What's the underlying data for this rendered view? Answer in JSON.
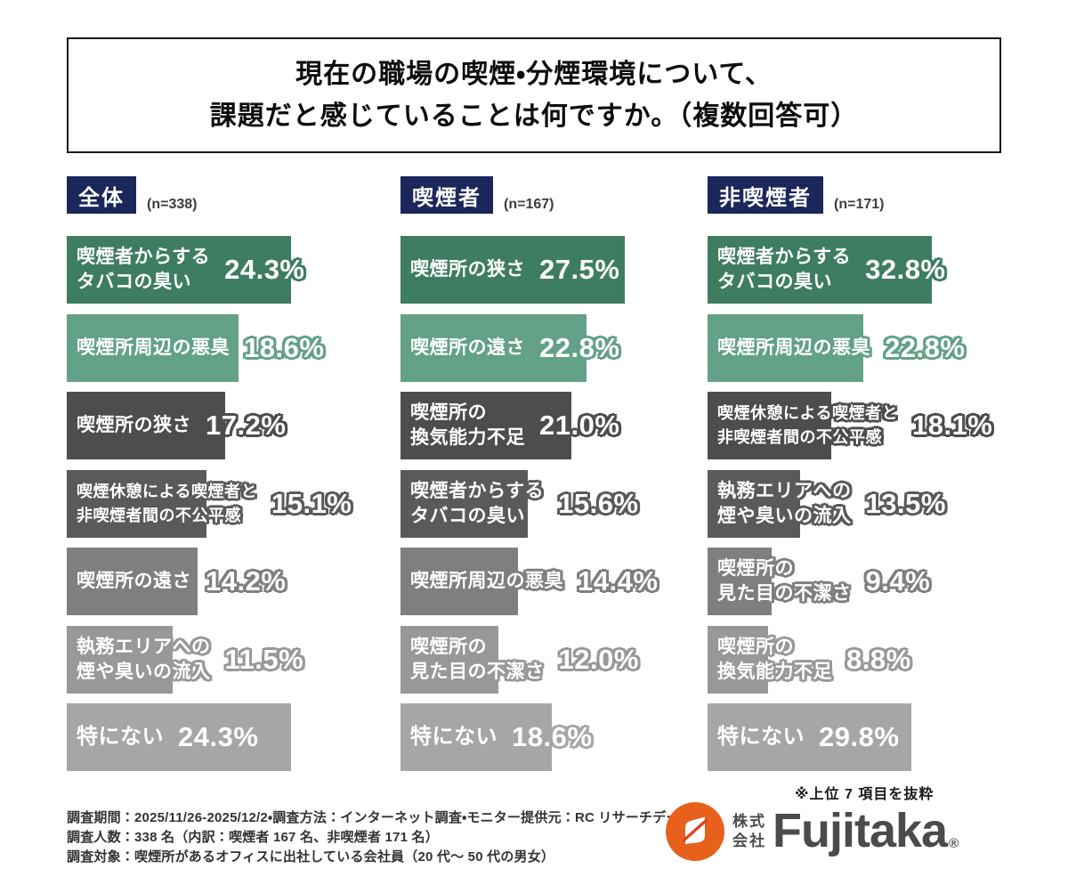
{
  "title": {
    "line1": "現在の職場の喫煙・分煙環境について、",
    "line2": "課題だと感じていることは何ですか。（複数回答可）"
  },
  "palette": {
    "rank_colors": [
      "#3E7D62",
      "#63A188",
      "#4D4D4D",
      "#5A5A5A",
      "#7F7F7F",
      "#989898",
      "#A6A6A6"
    ],
    "header_navy": "#1B265A",
    "logo_orange": "#E8611C",
    "logo_stripe": "#E0401A",
    "brand_gray": "#4B4B4B"
  },
  "columns": [
    {
      "header": "全体",
      "n_label": "(n=338)",
      "bars": [
        {
          "label": "喫煙者からする\nタバコの臭い",
          "display": "24.3%",
          "value": 24.3
        },
        {
          "label": "喫煙所周辺の悪臭",
          "display": "18.6%",
          "value": 18.6
        },
        {
          "label": "喫煙所の狭さ",
          "display": "17.2%",
          "value": 17.2
        },
        {
          "label": "喫煙休憩による喫煙者と\n非喫煙者間の不公平感",
          "display": "15.1%",
          "value": 15.1
        },
        {
          "label": "喫煙所の遠さ",
          "display": "14.2%",
          "value": 14.2
        },
        {
          "label": "執務エリアへの\n煙や臭いの流入",
          "display": "11.5%",
          "value": 11.5
        },
        {
          "label": "特にない",
          "display": "24.3%",
          "value": 24.3
        }
      ]
    },
    {
      "header": "喫煙者",
      "n_label": "(n=167)",
      "bars": [
        {
          "label": "喫煙所の狭さ",
          "display": "27.5%",
          "value": 27.5
        },
        {
          "label": "喫煙所の遠さ",
          "display": "22.8%",
          "value": 22.8
        },
        {
          "label": "喫煙所の\n換気能力不足",
          "display": "21.0%",
          "value": 21.0
        },
        {
          "label": "喫煙者からする\nタバコの臭い",
          "display": "15.6%",
          "value": 15.6
        },
        {
          "label": "喫煙所周辺の悪臭",
          "display": "14.4%",
          "value": 14.4
        },
        {
          "label": "喫煙所の\n見た目の不潔さ",
          "display": "12.0%",
          "value": 12.0
        },
        {
          "label": "特にない",
          "display": "18.6%",
          "value": 18.6
        }
      ]
    },
    {
      "header": "非喫煙者",
      "n_label": "(n=171)",
      "bars": [
        {
          "label": "喫煙者からする\nタバコの臭い",
          "display": "32.8%",
          "value": 32.8
        },
        {
          "label": "喫煙所周辺の悪臭",
          "display": "22.8%",
          "value": 22.8
        },
        {
          "label": "喫煙休憩による喫煙者と\n非喫煙者間の不公平感",
          "display": "18.1%",
          "value": 18.1
        },
        {
          "label": "執務エリアへの\n煙や臭いの流入",
          "display": "13.5%",
          "value": 13.5
        },
        {
          "label": "喫煙所の\n見た目の不潔さ",
          "display": "9.4%",
          "value": 9.4
        },
        {
          "label": "喫煙所の\n換気能力不足",
          "display": "8.8%",
          "value": 8.8
        },
        {
          "label": "特にない",
          "display": "29.8%",
          "value": 29.8
        }
      ]
    }
  ],
  "footnote": "※上位 7 項目を抜粋",
  "survey_notes": [
    "調査期間：2025/11/26-2025/12/2・調査方法：インターネット調査・モニター提供元：RC リサーチデータ",
    "調査人数：338 名（内訳：喫煙者 167 名、非喫煙者 171 名）",
    "調査対象：喫煙所があるオフィスに出社している会社員（20 代～ 50 代の男女）"
  ],
  "logo": {
    "company_type_top": "株式",
    "company_type_bottom": "会社",
    "brand": "Fujitaka",
    "registered": "®"
  },
  "chart_data": [
    {
      "type": "bar",
      "orientation": "horizontal",
      "title": "全体",
      "n": 338,
      "categories": [
        "喫煙者からするタバコの臭い",
        "喫煙所周辺の悪臭",
        "喫煙所の狭さ",
        "喫煙休憩による喫煙者と非喫煙者間の不公平感",
        "喫煙所の遠さ",
        "執務エリアへの煙や臭いの流入",
        "特にない"
      ],
      "values": [
        24.3,
        18.6,
        17.2,
        15.1,
        14.2,
        11.5,
        24.3
      ],
      "unit": "%",
      "xlim": [
        0,
        27.5
      ],
      "grid": false,
      "legend": false
    },
    {
      "type": "bar",
      "orientation": "horizontal",
      "title": "喫煙者",
      "n": 167,
      "categories": [
        "喫煙所の狭さ",
        "喫煙所の遠さ",
        "喫煙所の換気能力不足",
        "喫煙者からするタバコの臭い",
        "喫煙所周辺の悪臭",
        "喫煙所の見た目の不潔さ",
        "特にない"
      ],
      "values": [
        27.5,
        22.8,
        21.0,
        15.6,
        14.4,
        12.0,
        18.6
      ],
      "unit": "%",
      "xlim": [
        0,
        27.5
      ],
      "grid": false,
      "legend": false
    },
    {
      "type": "bar",
      "orientation": "horizontal",
      "title": "非喫煙者",
      "n": 171,
      "categories": [
        "喫煙者からするタバコの臭い",
        "喫煙所周辺の悪臭",
        "喫煙休憩による喫煙者と非喫煙者間の不公平感",
        "執務エリアへの煙や臭いの流入",
        "喫煙所の見た目の不潔さ",
        "喫煙所の換気能力不足",
        "特にない"
      ],
      "values": [
        32.8,
        22.8,
        18.1,
        13.5,
        9.4,
        8.8,
        29.8
      ],
      "unit": "%",
      "xlim": [
        0,
        32.8
      ],
      "grid": false,
      "legend": false
    }
  ]
}
